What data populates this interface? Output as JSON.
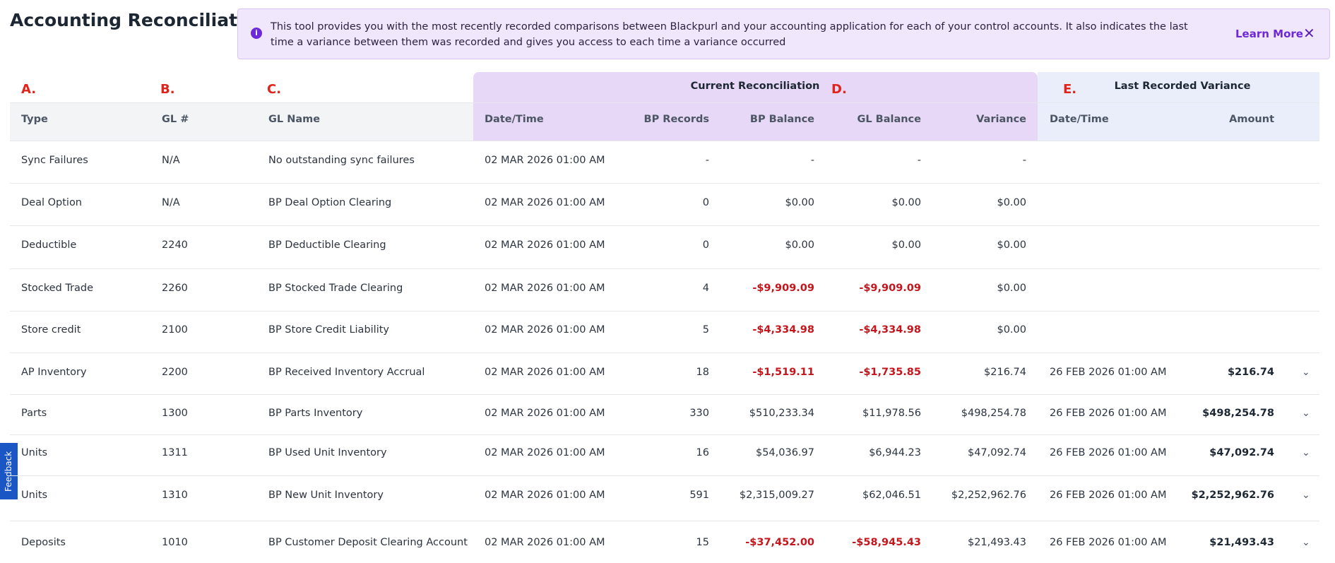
{
  "header": {
    "title": "Accounting Reconciliation"
  },
  "banner": {
    "text": "This tool provides you with the most recently recorded comparisons between Blackpurl and your accounting application for each of your control accounts. It also indicates the last time a variance between them was recorded and gives you access to each time a variance occurred",
    "link": "Learn More"
  },
  "annotations": [
    "A.",
    "B.",
    "C.",
    "D.",
    "E."
  ],
  "table": {
    "group_headers": [
      "Current Reconciliation",
      "Last Recorded Variance"
    ],
    "columns": [
      "Type",
      "GL #",
      "GL Name",
      "Date/Time",
      "BP Records",
      "BP Balance",
      "GL Balance",
      "Variance",
      "Date/Time",
      "Amount"
    ],
    "rows": [
      [
        "Sync Failures",
        "N/A",
        "No outstanding sync failures",
        "02 MAR 2026 01:00 AM",
        "-",
        "-",
        "-",
        "-",
        null,
        null
      ],
      [
        "Deal Option",
        "N/A",
        "BP Deal Option Clearing",
        "02 MAR 2026 01:00 AM",
        "0",
        "$0.00",
        "$0.00",
        "$0.00",
        null,
        null
      ],
      [
        "Deductible",
        "2240",
        "BP Deductible Clearing",
        "02 MAR 2026 01:00 AM",
        "0",
        "$0.00",
        "$0.00",
        "$0.00",
        null,
        null
      ],
      [
        "Stocked Trade",
        "2260",
        "BP Stocked Trade Clearing",
        "02 MAR 2026 01:00 AM",
        "4",
        "-$9,909.09",
        "-$9,909.09",
        "$0.00",
        null,
        null
      ],
      [
        "Store credit",
        "2100",
        "BP Store Credit Liability",
        "02 MAR 2026 01:00 AM",
        "5",
        "-$4,334.98",
        "-$4,334.98",
        "$0.00",
        null,
        null
      ],
      [
        "AP Inventory",
        "2200",
        "BP Received Inventory Accrual",
        "02 MAR 2026 01:00 AM",
        "18",
        "-$1,519.11",
        "-$1,735.85",
        "$216.74",
        "26 FEB 2026 01:00 AM",
        "$216.74"
      ],
      [
        "Parts",
        "1300",
        "BP Parts Inventory",
        "02 MAR 2026 01:00 AM",
        "330",
        "$510,233.34",
        "$11,978.56",
        "$498,254.78",
        "26 FEB 2026 01:00 AM",
        "$498,254.78"
      ],
      [
        "Units",
        "1311",
        "BP Used Unit Inventory",
        "02 MAR 2026 01:00 AM",
        "16",
        "$54,036.97",
        "$6,944.23",
        "$47,092.74",
        "26 FEB 2026 01:00 AM",
        "$47,092.74"
      ],
      [
        "Units",
        "1310",
        "BP New Unit Inventory",
        "02 MAR 2026 01:00 AM",
        "591",
        "$2,315,009.27",
        "$62,046.51",
        "$2,252,962.76",
        "26 FEB 2026 01:00 AM",
        "$2,252,962.76"
      ],
      [
        "Deposits",
        "1010",
        "BP Customer Deposit Clearing Account",
        "02 MAR 2026 01:00 AM",
        "15",
        "-$37,452.00",
        "-$58,945.43",
        "$21,493.43",
        "26 FEB 2026 01:00 AM",
        "$21,493.43"
      ]
    ]
  },
  "feedback": "Feedback"
}
